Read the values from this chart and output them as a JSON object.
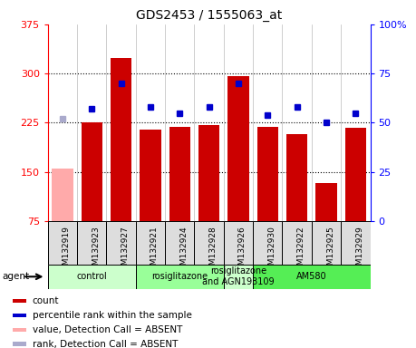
{
  "title": "GDS2453 / 1555063_at",
  "samples": [
    "GSM132919",
    "GSM132923",
    "GSM132927",
    "GSM132921",
    "GSM132924",
    "GSM132928",
    "GSM132926",
    "GSM132930",
    "GSM132922",
    "GSM132925",
    "GSM132929"
  ],
  "counts": [
    155,
    226,
    323,
    214,
    218,
    222,
    296,
    219,
    207,
    133,
    217
  ],
  "count_absent": [
    true,
    false,
    false,
    false,
    false,
    false,
    false,
    false,
    false,
    false,
    false
  ],
  "percentile_ranks": [
    52,
    57,
    70,
    58,
    55,
    58,
    70,
    54,
    58,
    50,
    55
  ],
  "rank_absent": [
    true,
    false,
    false,
    false,
    false,
    false,
    false,
    false,
    false,
    false,
    false
  ],
  "ylim_left": [
    75,
    375
  ],
  "ylim_right": [
    0,
    100
  ],
  "yticks_left": [
    75,
    150,
    225,
    300,
    375
  ],
  "yticks_right": [
    0,
    25,
    50,
    75,
    100
  ],
  "bar_color_normal": "#cc0000",
  "bar_color_absent": "#ffaaaa",
  "dot_color_normal": "#0000cc",
  "dot_color_absent": "#aaaacc",
  "groups": [
    {
      "label": "control",
      "start": 0,
      "end": 3
    },
    {
      "label": "rosiglitazone",
      "start": 3,
      "end": 6
    },
    {
      "label": "rosiglitazone\nand AGN193109",
      "start": 6,
      "end": 7
    },
    {
      "label": "AM580",
      "start": 7,
      "end": 11
    }
  ],
  "group_bg_colors": [
    "#ccffcc",
    "#99ff99",
    "#ccffcc",
    "#55ee55"
  ],
  "agent_label": "agent",
  "legend_labels": [
    "count",
    "percentile rank within the sample",
    "value, Detection Call = ABSENT",
    "rank, Detection Call = ABSENT"
  ],
  "legend_colors": [
    "#cc0000",
    "#0000cc",
    "#ffaaaa",
    "#aaaacc"
  ],
  "grid_lines": [
    150,
    225,
    300
  ],
  "xlabel_fontsize": 7,
  "title_fontsize": 10
}
